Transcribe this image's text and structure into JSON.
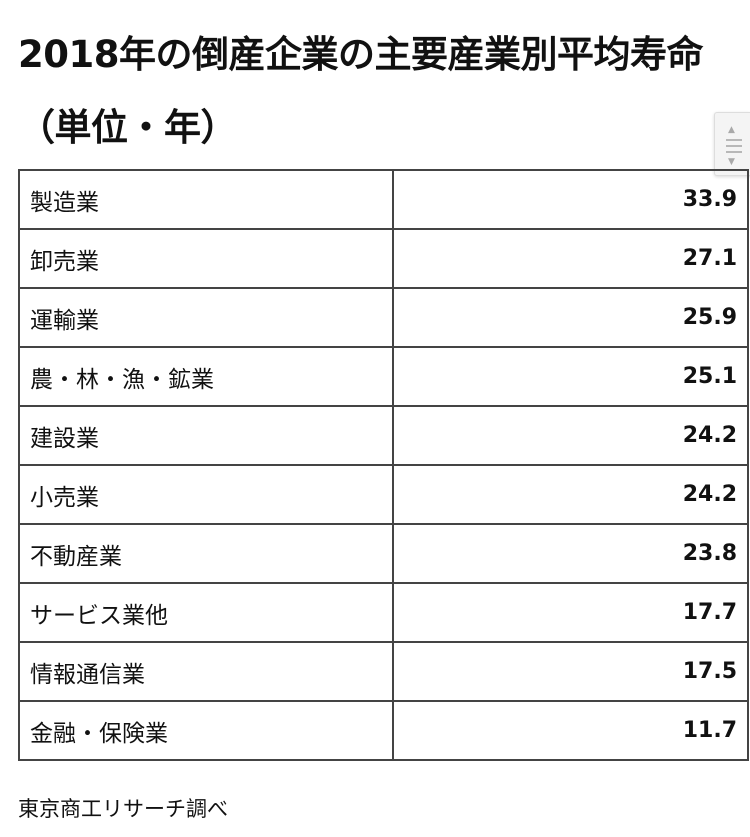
{
  "title": "2018年の倒産企業の主要産業別平均寿命（単位・年）",
  "source_note": "東京商工リサーチ調べ",
  "chart_data": {
    "type": "table",
    "title": "2018年の倒産企業の主要産業別平均寿命（単位・年）",
    "columns": [
      "",
      ""
    ],
    "rows": [
      {
        "industry": "製造業",
        "value": "33.9"
      },
      {
        "industry": "卸売業",
        "value": "27.1"
      },
      {
        "industry": "運輸業",
        "value": "25.9"
      },
      {
        "industry": "農・林・漁・鉱業",
        "value": "25.1"
      },
      {
        "industry": "建設業",
        "value": "24.2"
      },
      {
        "industry": "小売業",
        "value": "24.2"
      },
      {
        "industry": "不動産業",
        "value": "23.8"
      },
      {
        "industry": "サービス業他",
        "value": "17.7"
      },
      {
        "industry": "情報通信業",
        "value": "17.5"
      },
      {
        "industry": "金融・保険業",
        "value": "11.7"
      }
    ]
  },
  "scroll_widget": {
    "icons": [
      "chevron-up-icon",
      "chevron-down-icon",
      "grip-icon"
    ]
  }
}
